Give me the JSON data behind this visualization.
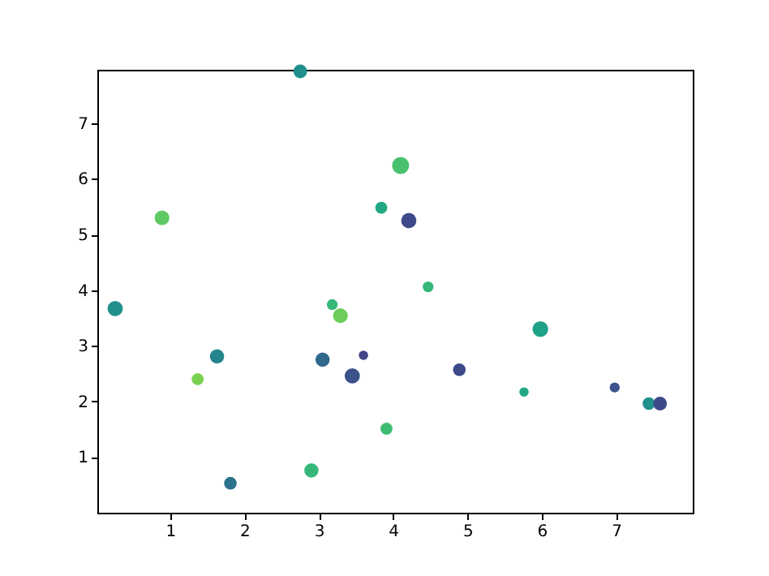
{
  "chart_data": {
    "type": "scatter",
    "x": [
      0.26,
      0.89,
      1.37,
      1.63,
      1.81,
      2.75,
      2.9,
      3.05,
      3.18,
      3.29,
      3.45,
      3.6,
      3.84,
      3.91,
      4.1,
      4.21,
      4.47,
      4.89,
      5.76,
      5.98,
      6.98,
      7.44,
      7.59
    ],
    "values": [
      3.67,
      5.3,
      2.4,
      2.81,
      0.53,
      7.93,
      0.76,
      2.75,
      3.74,
      3.54,
      2.46,
      2.83,
      5.48,
      1.51,
      6.24,
      5.25,
      4.06,
      2.57,
      2.17,
      3.3,
      2.25,
      1.96,
      1.96
    ],
    "sizes": [
      0.8,
      0.75,
      0.5,
      0.7,
      0.55,
      0.65,
      0.7,
      0.7,
      0.4,
      0.75,
      0.8,
      0.3,
      0.5,
      0.5,
      1,
      0.8,
      0.4,
      0.55,
      0.3,
      0.85,
      0.35,
      0.55,
      0.65
    ],
    "colors": [
      "#21908d",
      "#5ec962",
      "#7ad151",
      "#25858e",
      "#2c728e",
      "#21908d",
      "#35b779",
      "#31688e",
      "#35b779",
      "#6ccd5a",
      "#3b528b",
      "#414487",
      "#22a884",
      "#3dbc74",
      "#4ac16d",
      "#3e4989",
      "#35b779",
      "#3e4989",
      "#22a884",
      "#1fa187",
      "#3b528b",
      "#21918c",
      "#3e4989"
    ],
    "xlim": [
      0.02,
      8.03
    ],
    "ylim": [
      0,
      7.96
    ],
    "xticks": [
      1,
      2,
      3,
      4,
      5,
      6,
      7
    ],
    "yticks": [
      1,
      2,
      3,
      4,
      5,
      6,
      7
    ],
    "marker": "circle",
    "grid": false
  }
}
